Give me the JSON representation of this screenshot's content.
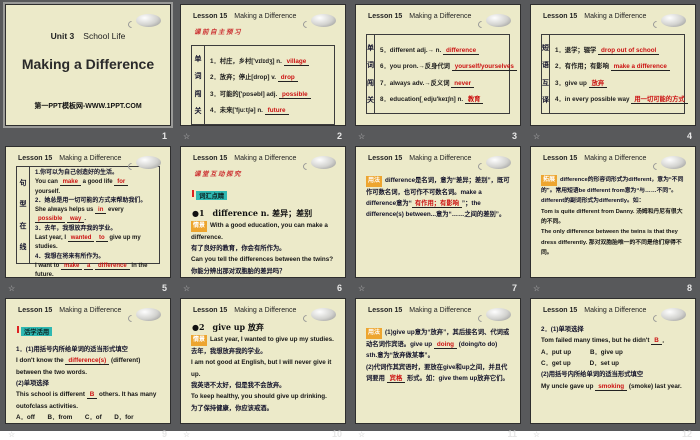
{
  "colors": {
    "desk_bg": "#58595B",
    "slide_bg": "#ECEAC9",
    "answer_red": "#cc1111",
    "badge_teal": "#2FB8B2",
    "tag_orange": "#EDA52F",
    "note_red": "#cc3333"
  },
  "slides": [
    {
      "number": "1",
      "unit_label": "Unit 3",
      "unit_text": "School Life",
      "title": "Making a Difference",
      "footer": "第一PPT模板网-WWW.1PPT.COM"
    },
    {
      "number": "2",
      "lesson": "Lesson 15",
      "title": "Making a Difference",
      "note": "课前自主预习",
      "side_chars": [
        "单",
        "词",
        "闯",
        "关"
      ],
      "rows": [
        {
          "label": "1．村庄，乡村['vɪlɪdʒ] n.",
          "ans": "village"
        },
        {
          "label": "2．放弃；停止[drop] v.",
          "ans": "drop"
        },
        {
          "label": "3．可能的['pɒsəbl] adj.",
          "ans": "possible"
        },
        {
          "label": "4．未来['fjuːtʃə] n.",
          "ans": "future"
        }
      ]
    },
    {
      "number": "3",
      "lesson": "Lesson 15",
      "title": "Making a Difference",
      "side_chars": [
        "单",
        "词",
        "闯",
        "关"
      ],
      "rows": [
        {
          "label": "5．different adj.→ n.",
          "ans": "difference"
        },
        {
          "label": "6．you pron.→反身代词",
          "ans": "yourself/yourselves"
        },
        {
          "label": "7．always adv.→反义词",
          "ans": "never"
        },
        {
          "label": "8．education[ˌedju'keɪʃn] n.",
          "ans": "教育"
        }
      ]
    },
    {
      "number": "4",
      "lesson": "Lesson 15",
      "title": "Making a Difference",
      "side_chars": [
        "短",
        "语",
        "互",
        "译"
      ],
      "rows": [
        {
          "label": "1．退学；辍学",
          "ans": "drop out of school"
        },
        {
          "label": "2．有作用；有影响",
          "ans": "make a difference"
        },
        {
          "label": "3．give up",
          "ans": "放弃"
        },
        {
          "label": "4．in every possible way",
          "ans": "用一切可能的方式"
        }
      ]
    },
    {
      "number": "5",
      "lesson": "Lesson 15",
      "title": "Making a Difference",
      "side_chars": [
        "句",
        "型",
        "在",
        "线"
      ],
      "items": [
        {
          "zh": "1.你可以为自己创造好的生活。",
          "en": [
            {
              "t": "You can "
            },
            {
              "a": "make"
            },
            {
              "t": " a good life "
            },
            {
              "a": "for"
            },
            {
              "t": " yourself."
            }
          ]
        },
        {
          "zh": "2．她总是用一切可能的方式来帮助我们。",
          "en": [
            {
              "t": "She always helps us "
            },
            {
              "a": "in"
            },
            {
              "t": " every "
            },
            {
              "a": "possible"
            },
            {
              "t": " "
            },
            {
              "a": "way"
            },
            {
              "t": "."
            }
          ]
        },
        {
          "zh": "3．去年，我想放弃我的学业。",
          "en": [
            {
              "t": "Last year, I "
            },
            {
              "a": "wanted"
            },
            {
              "t": " "
            },
            {
              "a": "to"
            },
            {
              "t": " give up my studies."
            }
          ]
        },
        {
          "zh": "4．我想在将来有所作为。",
          "en": [
            {
              "t": "I want to "
            },
            {
              "a": "make"
            },
            {
              "t": " "
            },
            {
              "a": "a"
            },
            {
              "t": " "
            },
            {
              "a": "difference"
            },
            {
              "t": " in the future."
            }
          ]
        }
      ]
    },
    {
      "number": "6",
      "lesson": "Lesson 15",
      "title": "Making a Difference",
      "note": "课堂互动探究",
      "badge": "词汇点睛",
      "point": "●1　difference n. 差异；差别",
      "tag": "情景",
      "lines": [
        {
          "cls": "en",
          "text": "With a good education, you can make a difference."
        },
        {
          "cls": "zh",
          "text": "有了良好的教育，你会有所作为。"
        },
        {
          "cls": "en",
          "text": "Can you tell the differences between the twins?"
        },
        {
          "cls": "zh",
          "text": "你能分辨出那对双胞胎的差异吗？"
        }
      ]
    },
    {
      "number": "7",
      "lesson": "Lesson 15",
      "title": "Making a Difference",
      "tag": "用法",
      "para": [
        {
          "t": "difference是名词，意为“差异；差别”，既可作可数名词，也可作不可数名词。make a difference意为“"
        },
        {
          "a": "有作用；有影响"
        },
        {
          "t": "”；the difference(s) between...意为“……之间的差别”。"
        }
      ]
    },
    {
      "number": "8",
      "lesson": "Lesson 15",
      "title": "Making a Difference",
      "tag": "拓展",
      "lines": [
        {
          "cls": "zh",
          "text": "difference的形容词形式为different，意为“不同的”。常用短语be different from意为“与……不同”。different的副词形式为differently。如："
        },
        {
          "cls": "en",
          "text": "Tom is quite different from Danny. 汤姆和丹尼有很大的不同。"
        },
        {
          "cls": "en",
          "text": "The only difference between the twins is that they dress differently. 那对双胞胎唯一的不同是他们穿得不同。"
        }
      ]
    },
    {
      "number": "9",
      "lesson": "Lesson 15",
      "title": "Making a Difference",
      "badge": "活学活用",
      "line1": "1．(1)用括号内所给单词的适当形式填空",
      "seg1": [
        {
          "t": "I don't know the "
        },
        {
          "a": "difference(s)"
        },
        {
          "t": " (different) between the two words."
        }
      ],
      "line2": "(2)单项选择",
      "seg2": [
        {
          "t": "This school is different "
        },
        {
          "a": "B"
        },
        {
          "t": " others. It has many outofclass activities."
        }
      ],
      "options": "A．off　　B．from　　C．of　　D．for"
    },
    {
      "number": "10",
      "lesson": "Lesson 15",
      "title": "Making a Difference",
      "point": "●2　give up 放弃",
      "tag": "情景",
      "lines": [
        {
          "cls": "en",
          "text": "Last year, I wanted to give up my studies."
        },
        {
          "cls": "zh",
          "text": "去年，我想放弃我的学业。"
        },
        {
          "cls": "en",
          "text": "I am not good at English, but I will never give it up."
        },
        {
          "cls": "zh",
          "text": "我英语不太好，但是我不会放弃。"
        },
        {
          "cls": "en",
          "text": "To keep healthy, you should give up drinking."
        },
        {
          "cls": "zh",
          "text": "为了保持健康，你应该戒酒。"
        }
      ]
    },
    {
      "number": "11",
      "lesson": "Lesson 15",
      "title": "Making a Difference",
      "tag": "用法",
      "para1": [
        {
          "t": "(1)give up意为“放弃”，其后接名词、代词或动名词作宾语。give up "
        },
        {
          "a": "doing"
        },
        {
          "t": " (doing/to do) sth.意为“放弃做某事”。"
        }
      ],
      "para2": [
        {
          "t": "(2)代词作其宾语时，要放在give和up之间，并且代词要用 "
        },
        {
          "a": "宾格"
        },
        {
          "t": " 形式。如：give them up放弃它们。"
        }
      ]
    },
    {
      "number": "12",
      "lesson": "Lesson 15",
      "title": "Making a Difference",
      "line1": "2．(1)单项选择",
      "seg1": [
        {
          "t": "Tom failed many times, but he didn't "
        },
        {
          "a": "B"
        },
        {
          "t": "．"
        }
      ],
      "options1": "A．put up　　　B．give up",
      "options2": "C．get up　　　D．set up",
      "line2": "(2)用括号内所给单词的适当形式填空",
      "seg2": [
        {
          "t": "My uncle gave up "
        },
        {
          "a": "smoking"
        },
        {
          "t": " (smoke) last year."
        }
      ]
    }
  ]
}
